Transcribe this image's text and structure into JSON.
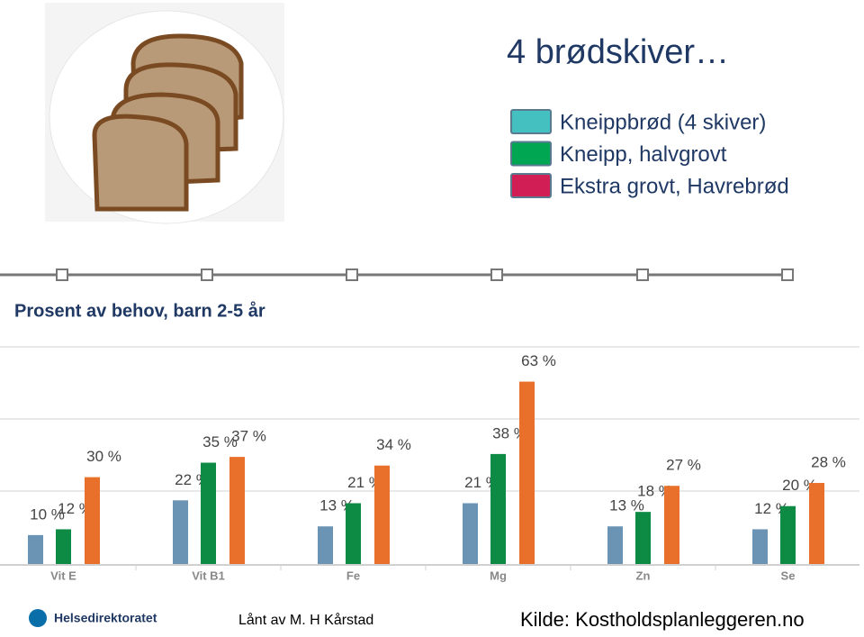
{
  "title": "4 brødskiver…",
  "legend": {
    "entries": [
      "Kneippbrød (4 skiver)",
      "Kneipp, halvgrovt",
      "Ekstra grovt, Havrebrød"
    ],
    "colors": [
      "#45c0c0",
      "#00a651",
      "#d11f55"
    ]
  },
  "chart_data": {
    "type": "bar",
    "title": "Prosent av behov, barn 2-5 år",
    "categories": [
      "Vit E",
      "Vit B1",
      "Fe",
      "Mg",
      "Zn",
      "Se"
    ],
    "series": [
      {
        "color": "#6b93b3",
        "values": [
          10,
          22,
          13,
          21,
          13,
          12
        ],
        "value_labels": [
          "10 %",
          "22 %",
          "13 %",
          "21 %",
          "13 %",
          "12 %"
        ]
      },
      {
        "color": "#0d8a44",
        "values": [
          12,
          35,
          21,
          38,
          18,
          20
        ],
        "value_labels": [
          "12 %",
          "35 %",
          "21 %",
          "38 %",
          "18 %",
          "20 %"
        ]
      },
      {
        "color": "#e8702a",
        "values": [
          30,
          37,
          34,
          63,
          27,
          28
        ],
        "value_labels": [
          "30 %",
          "37 %",
          "34 %",
          "63 %",
          "27 %",
          "28 %"
        ]
      }
    ],
    "ylim": [
      0,
      75
    ]
  },
  "footer": {
    "logo": "Helsedirektoratet",
    "credit": "Lånt av M. H Kårstad",
    "source": "Kilde: Kostholdsplanleggeren.no"
  }
}
